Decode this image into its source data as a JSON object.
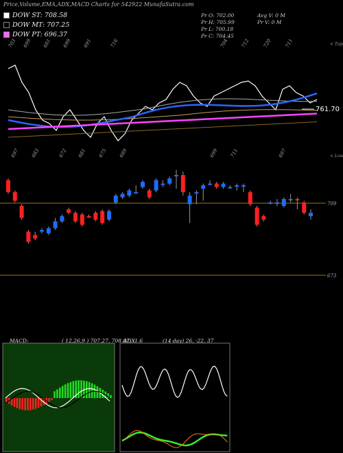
{
  "title": "Price,Volume,EMA,ADX,MACD Charts for 542922  MunafaSutra.com",
  "legend": [
    {
      "label": "DOW ST: 708.58",
      "color": "#ffffff"
    },
    {
      "label": "DOW MT: 707.25",
      "color": "#000000"
    },
    {
      "label": "DOW PT: 696.37",
      "color": "#ff66ff"
    }
  ],
  "ohlc": {
    "open": "Pr   O: 702.00",
    "high": "Pr   H: 705.99",
    "low": "Pr   L: 700.18",
    "close": "Pr   C: 704.45",
    "avg_vol": "Avg V: 0   M",
    "pr_vol": "Pr   V: 0   M"
  },
  "price_label": "761.70",
  "upper_caption": "< Tops",
  "lower_caption": "< Lows",
  "top_ticks": [
    "703",
    "699",
    "681",
    "699",
    "691",
    "716",
    "704",
    "712",
    "720",
    "711"
  ],
  "bottom_ticks": [
    "697",
    "683",
    "672",
    "681",
    "675",
    "689",
    "699",
    "711",
    "697"
  ],
  "level_labels": [
    "709",
    "673"
  ],
  "macd_label": "MACD:",
  "macd_values": "( 12,26,9 ) 707.27,  708.87,  -1.6",
  "adx_label": "ADX",
  "adx_values": "(14  day) 26,  -22,  37",
  "colors": {
    "up": "#1f6bff",
    "down": "#ff2020",
    "ema_fast": "#2a66ff",
    "ema_slow": "#ff44ff",
    "level": "#a07a10",
    "macd_hist": "#22dd22",
    "adx_plus": "#33ee33",
    "adx_minus": "#ff7a10"
  },
  "chart_data": {
    "type": "candlestick",
    "series": [
      {
        "name": "DOW ST",
        "value": 708.58
      },
      {
        "name": "DOW MT",
        "value": 707.25
      },
      {
        "name": "DOW PT",
        "value": 696.37
      }
    ],
    "ohlc_last": {
      "open": 702.0,
      "high": 705.99,
      "low": 700.18,
      "close": 704.45
    },
    "top_labels": [
      703,
      699,
      681,
      699,
      691,
      716,
      704,
      712,
      720,
      711
    ],
    "bottom_labels": [
      697,
      683,
      672,
      681,
      675,
      689,
      699,
      711,
      697
    ],
    "levels": [
      709,
      673
    ],
    "candles": [
      {
        "dir": "down",
        "o": 723,
        "c": 716,
        "h": 724,
        "l": 715
      },
      {
        "dir": "down",
        "o": 716,
        "c": 711,
        "h": 717,
        "l": 710
      },
      {
        "dir": "down",
        "o": 708,
        "c": 701,
        "h": 709,
        "l": 700
      },
      {
        "dir": "down",
        "o": 693,
        "c": 687,
        "h": 694,
        "l": 686
      },
      {
        "dir": "down",
        "o": 691,
        "c": 689,
        "h": 693,
        "l": 688
      },
      {
        "dir": "up",
        "o": 693,
        "c": 694,
        "h": 695,
        "l": 692
      },
      {
        "dir": "up",
        "o": 692,
        "c": 695,
        "h": 696,
        "l": 691
      },
      {
        "dir": "up",
        "o": 695,
        "c": 699,
        "h": 701,
        "l": 694
      },
      {
        "dir": "up",
        "o": 699,
        "c": 702,
        "h": 703,
        "l": 698
      },
      {
        "dir": "down",
        "o": 706,
        "c": 704,
        "h": 707,
        "l": 703
      },
      {
        "dir": "down",
        "o": 704,
        "c": 699,
        "h": 705,
        "l": 698
      },
      {
        "dir": "down",
        "o": 703,
        "c": 697,
        "h": 704,
        "l": 696
      },
      {
        "dir": "down",
        "o": 702,
        "c": 702,
        "h": 703,
        "l": 701
      },
      {
        "dir": "down",
        "o": 704,
        "c": 700,
        "h": 705,
        "l": 699
      },
      {
        "dir": "down",
        "o": 705,
        "c": 698,
        "h": 706,
        "l": 697
      },
      {
        "dir": "up",
        "o": 700,
        "c": 705,
        "h": 706,
        "l": 699
      },
      {
        "dir": "up",
        "o": 710,
        "c": 714,
        "h": 715,
        "l": 709
      },
      {
        "dir": "up",
        "o": 713,
        "c": 715,
        "h": 716,
        "l": 712
      },
      {
        "dir": "up",
        "o": 714,
        "c": 717,
        "h": 718,
        "l": 713
      },
      {
        "dir": "up",
        "o": 716,
        "c": 716,
        "h": 720,
        "l": 715
      },
      {
        "dir": "up",
        "o": 719,
        "c": 722,
        "h": 723,
        "l": 718
      },
      {
        "dir": "down",
        "o": 717,
        "c": 713,
        "h": 718,
        "l": 712
      },
      {
        "dir": "up",
        "o": 717,
        "c": 723,
        "h": 724,
        "l": 716
      },
      {
        "dir": "up",
        "o": 721,
        "c": 721,
        "h": 723,
        "l": 719
      },
      {
        "dir": "up",
        "o": 721,
        "c": 724,
        "h": 725,
        "l": 720
      },
      {
        "dir": "up",
        "o": 726,
        "c": 726,
        "h": 729,
        "l": 718
      },
      {
        "dir": "down",
        "o": 726,
        "c": 716,
        "h": 728,
        "l": 714
      },
      {
        "dir": "up",
        "o": 709,
        "c": 714,
        "h": 716,
        "l": 698
      },
      {
        "dir": "up",
        "o": 716,
        "c": 716,
        "h": 717,
        "l": 709
      },
      {
        "dir": "up",
        "o": 718,
        "c": 720,
        "h": 721,
        "l": 711
      },
      {
        "dir": "up",
        "o": 721,
        "c": 721,
        "h": 723,
        "l": 720
      },
      {
        "dir": "down",
        "o": 721,
        "c": 719,
        "h": 722,
        "l": 718
      },
      {
        "dir": "up",
        "o": 719,
        "c": 721,
        "h": 722,
        "l": 718
      },
      {
        "dir": "up",
        "o": 719,
        "c": 719,
        "h": 720,
        "l": 718
      },
      {
        "dir": "up",
        "o": 720,
        "c": 720,
        "h": 721,
        "l": 717
      },
      {
        "dir": "up",
        "o": 720,
        "c": 720,
        "h": 721,
        "l": 716
      },
      {
        "dir": "down",
        "o": 716,
        "c": 709,
        "h": 717,
        "l": 708
      },
      {
        "dir": "down",
        "o": 707,
        "c": 697,
        "h": 708,
        "l": 696
      },
      {
        "dir": "down",
        "o": 702,
        "c": 700,
        "h": 703,
        "l": 699
      },
      {
        "dir": "up",
        "o": 710,
        "c": 710,
        "h": 711,
        "l": 709
      },
      {
        "dir": "up",
        "o": 710,
        "c": 710,
        "h": 712,
        "l": 708
      },
      {
        "dir": "up",
        "o": 708,
        "c": 712,
        "h": 713,
        "l": 707
      },
      {
        "dir": "up",
        "o": 712,
        "c": 712,
        "h": 715,
        "l": 710
      },
      {
        "dir": "down",
        "o": 712,
        "c": 712,
        "h": 713,
        "l": 706
      },
      {
        "dir": "down",
        "o": 710,
        "c": 704,
        "h": 711,
        "l": 703
      },
      {
        "dir": "up",
        "o": 702,
        "c": 704,
        "h": 706,
        "l": 700
      }
    ],
    "macd": {
      "fast": 707.27,
      "slow": 708.87,
      "hist": -1.6
    },
    "adx": {
      "period": 14,
      "plus_di": 26,
      "minus_di": -22,
      "adx": 37
    }
  }
}
